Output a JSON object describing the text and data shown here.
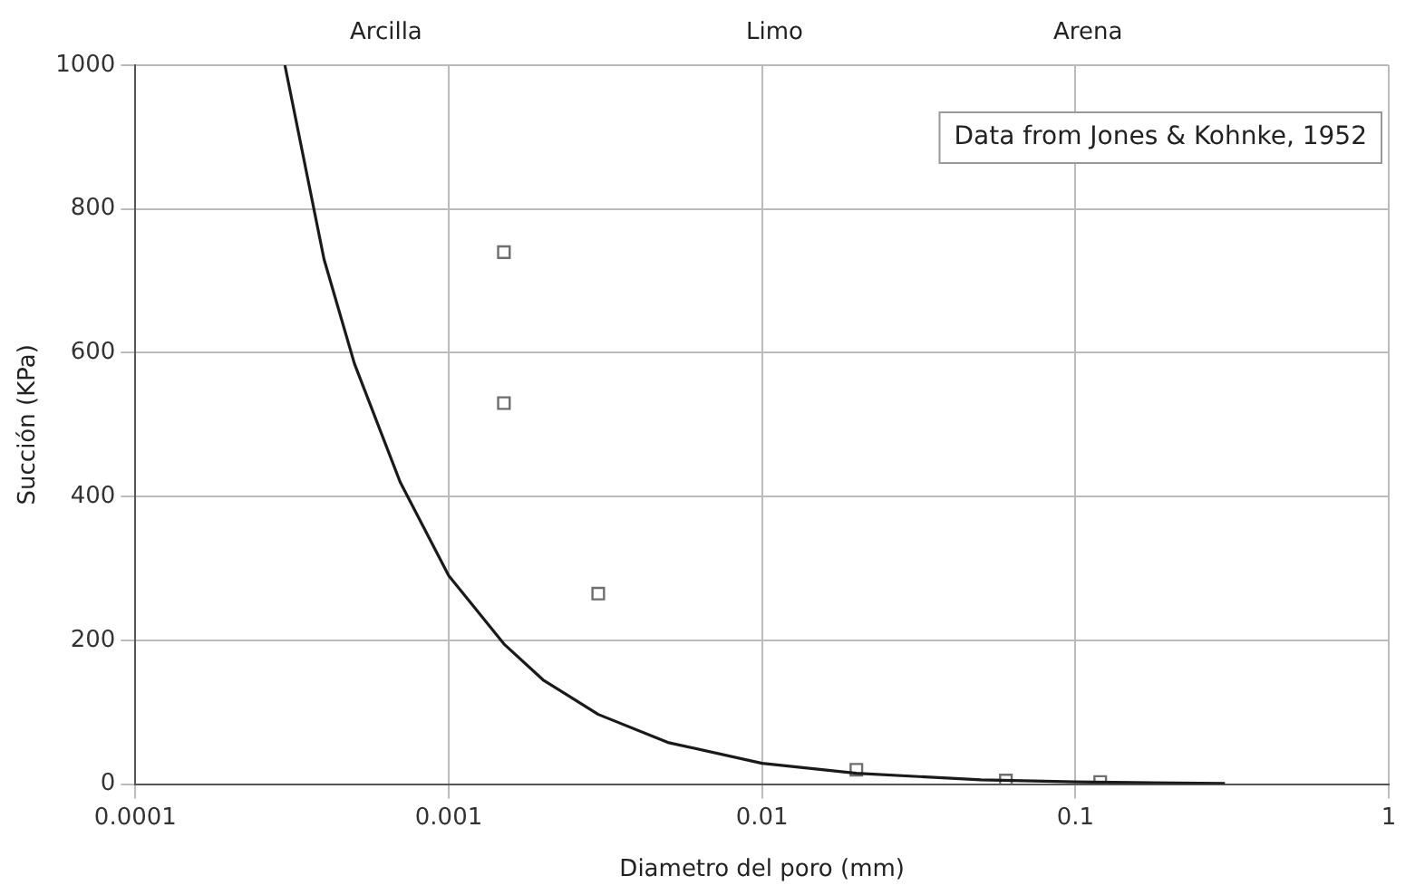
{
  "chart_data": {
    "type": "scatter",
    "xlabel": "Diametro del poro (mm)",
    "ylabel": "Succión (KPa)",
    "log": "x",
    "grid": true,
    "xlim": [
      0.0001,
      1
    ],
    "xticks": [
      0.0001,
      0.001,
      0.01,
      0.1,
      1
    ],
    "ylim": [
      0,
      1000
    ],
    "yticks": [
      0,
      200,
      400,
      600,
      800,
      1000
    ],
    "annotations": [
      "Arcilla",
      "Limo",
      "Arena",
      "Data from Jones & Kohnke, 1952"
    ],
    "series": [
      {
        "type": "line",
        "color": "#1a1a1a",
        "marker": "none",
        "line_style": "solid",
        "x": [
          0.0003,
          0.0004,
          0.0005,
          0.0007,
          0.001,
          0.0015,
          0.002,
          0.003,
          0.005,
          0.01,
          0.02,
          0.05,
          0.1,
          0.3
        ],
        "values": [
          1000,
          730,
          585,
          420,
          290,
          195,
          145,
          97,
          58,
          29,
          15,
          6,
          3,
          1
        ]
      },
      {
        "type": "scatter",
        "color": "#6e6e6e",
        "marker": "square",
        "x": [
          0.0015,
          0.0015,
          0.003,
          0.02,
          0.06,
          0.12
        ],
        "values": [
          740,
          530,
          265,
          20,
          5,
          3
        ]
      }
    ]
  }
}
